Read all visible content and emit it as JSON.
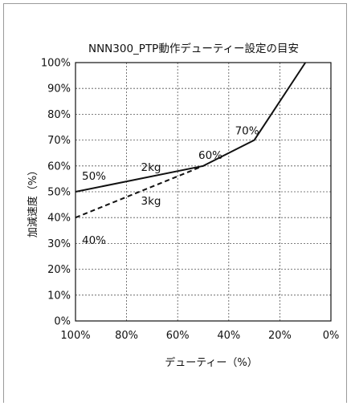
{
  "chart_data": {
    "type": "line",
    "title": "NNN300_PTP動作デューティー設定の目安",
    "xlabel": "デューティー（%）",
    "ylabel": "加減速度（%）",
    "xlim": [
      100,
      0
    ],
    "ylim": [
      0,
      100
    ],
    "x_reversed": true,
    "x_ticks": [
      "100%",
      "80%",
      "60%",
      "40%",
      "20%",
      "0%"
    ],
    "x_tick_values": [
      100,
      80,
      60,
      40,
      20,
      0
    ],
    "y_ticks": [
      "0%",
      "10%",
      "20%",
      "30%",
      "40%",
      "50%",
      "60%",
      "70%",
      "80%",
      "90%",
      "100%"
    ],
    "y_tick_values": [
      0,
      10,
      20,
      30,
      40,
      50,
      60,
      70,
      80,
      90,
      100
    ],
    "grid": true,
    "series": [
      {
        "name": "2kg",
        "style": "solid",
        "color": "#111111",
        "points": [
          [
            100,
            50
          ],
          [
            50,
            60
          ],
          [
            30,
            70
          ],
          [
            10,
            100
          ]
        ]
      },
      {
        "name": "3kg",
        "style": "dashed",
        "color": "#111111",
        "points": [
          [
            100,
            40
          ],
          [
            50,
            60
          ]
        ]
      }
    ],
    "annotations": [
      {
        "text": "50%",
        "x": 100,
        "y": 50
      },
      {
        "text": "40%",
        "x": 100,
        "y": 40
      },
      {
        "text": "60%",
        "x": 50,
        "y": 60
      },
      {
        "text": "70%",
        "x": 30,
        "y": 70
      },
      {
        "text": "2kg",
        "x": 75,
        "y": 58
      },
      {
        "text": "3kg",
        "x": 75,
        "y": 45
      }
    ]
  }
}
